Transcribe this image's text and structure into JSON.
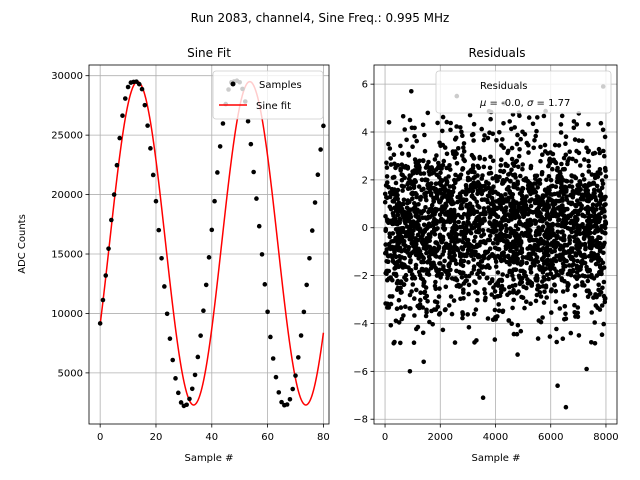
{
  "suptitle": "Run 2083, channel4, Sine Freq.: 0.995 MHz",
  "chart_data": [
    {
      "type": "line",
      "title": "Sine Fit",
      "xlabel": "Sample #",
      "ylabel": "ADC Counts",
      "xlim": [
        -4,
        82
      ],
      "ylim": [
        700,
        30900
      ],
      "xticks": [
        0,
        20,
        40,
        60,
        80
      ],
      "yticks": [
        5000,
        10000,
        15000,
        20000,
        25000,
        30000
      ],
      "grid": true,
      "legend": "top-right",
      "sine_model": {
        "offset": 15900,
        "amplitude": 13600,
        "period": 40.2,
        "peak_at": 13.4
      },
      "series": [
        {
          "name": "Samples",
          "style": "points",
          "color": "#000000",
          "x": [
            0,
            1,
            2,
            3,
            4,
            5,
            6,
            7,
            8,
            9,
            10,
            11,
            12,
            13,
            14,
            15,
            16,
            17,
            18,
            19,
            20,
            21,
            22,
            23,
            24,
            25,
            26,
            27,
            28,
            29,
            30,
            31,
            32,
            33,
            34,
            35,
            36,
            37,
            38,
            39,
            40,
            41,
            42,
            43,
            44,
            45,
            46,
            47,
            48,
            49,
            50,
            51,
            52,
            53,
            54,
            55,
            56,
            57,
            58,
            59,
            60,
            61,
            62,
            63,
            64,
            65,
            66,
            67,
            68,
            69,
            70,
            71,
            72,
            73,
            74,
            75,
            76,
            77,
            78,
            79,
            80
          ],
          "values": [
            9160,
            11130,
            13190,
            15450,
            17860,
            20000,
            22470,
            24750,
            26640,
            28080,
            29050,
            29420,
            29480,
            29500,
            29290,
            28870,
            27520,
            25800,
            23890,
            21650,
            19440,
            17010,
            14640,
            12270,
            9970,
            7880,
            6080,
            4540,
            3320,
            2510,
            2220,
            2320,
            2810,
            3660,
            4830,
            6340,
            8130,
            10230,
            12400,
            14720,
            17030,
            19440,
            21860,
            24050,
            25980,
            27610,
            28840,
            29440,
            29520,
            29580,
            29450,
            28890,
            27830,
            26170,
            24240,
            21900,
            19660,
            17340,
            14970,
            12450,
            10140,
            8020,
            6210,
            4640,
            3360,
            2540,
            2280,
            2340,
            2780,
            3640,
            4770,
            6300,
            8140,
            10130,
            12400,
            14640,
            16970,
            19330,
            21670,
            23790,
            25780
          ]
        },
        {
          "name": "Sine fit",
          "style": "line",
          "color": "#ff0000"
        }
      ]
    },
    {
      "type": "scatter",
      "title": "Residuals",
      "xlabel": "Sample #",
      "ylabel": "",
      "xlim": [
        -400,
        8400
      ],
      "ylim": [
        -8.2,
        6.8
      ],
      "xticks": [
        0,
        2000,
        4000,
        6000,
        8000
      ],
      "yticks": [
        -8,
        -6,
        -4,
        -2,
        0,
        2,
        4,
        6
      ],
      "grid": true,
      "legend": "top-right",
      "legend_entries": [
        "Residuals",
        "μ = -0.0, σ = 1.77"
      ],
      "distribution": {
        "n_points": 8000,
        "x_range": [
          0,
          8000
        ],
        "mean": 0.0,
        "std": 1.77
      },
      "outliers": [
        {
          "x": 950,
          "y": 5.7
        },
        {
          "x": 2600,
          "y": 5.5
        },
        {
          "x": 7900,
          "y": 5.9
        },
        {
          "x": 4300,
          "y": 5.2
        },
        {
          "x": 1550,
          "y": 4.8
        },
        {
          "x": 900,
          "y": -6.0
        },
        {
          "x": 3550,
          "y": -7.1
        },
        {
          "x": 6550,
          "y": -7.5
        },
        {
          "x": 6250,
          "y": -6.6
        },
        {
          "x": 7300,
          "y": -5.9
        },
        {
          "x": 1400,
          "y": -5.6
        },
        {
          "x": 4800,
          "y": -5.3
        }
      ]
    }
  ]
}
